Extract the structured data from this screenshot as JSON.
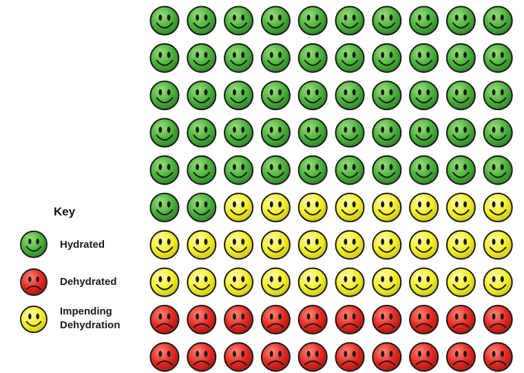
{
  "chart_data": {
    "type": "pictograph",
    "rows": 10,
    "columns": 10,
    "legend_title": "Key",
    "categories": [
      {
        "name": "Hydrated",
        "mood": "happy",
        "color": "#3fa535",
        "count": 52
      },
      {
        "name": "Dehydrated",
        "mood": "sad",
        "color": "#e02424",
        "count": 20
      },
      {
        "name": "Impending Dehydration",
        "label_line1": "Impending",
        "label_line2": "Dehydration",
        "mood": "happy",
        "color": "#f1ec22",
        "count": 28
      }
    ],
    "fill_order": [
      "Hydrated",
      "Impending Dehydration",
      "Dehydrated"
    ],
    "legend_placement": "left"
  }
}
